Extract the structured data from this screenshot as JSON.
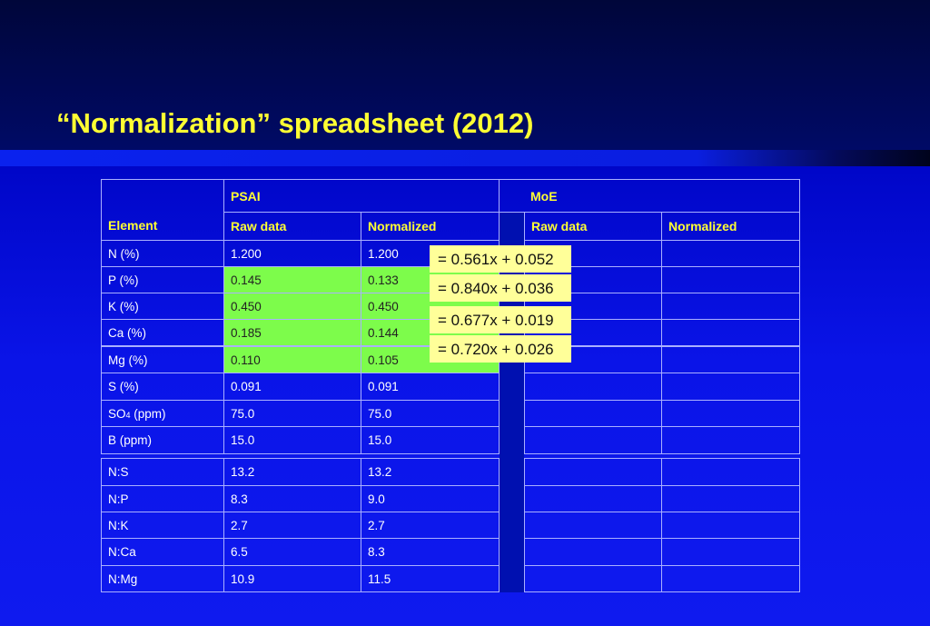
{
  "slide": {
    "title": "“Normalization” spreadsheet (2012)"
  },
  "table": {
    "group_headers": {
      "psai": "PSAI",
      "moe": "MoE"
    },
    "col_headers": {
      "element": "Element",
      "psai_raw": "Raw data",
      "psai_norm": "Normalized",
      "moe_raw": "Raw data",
      "moe_norm": "Normalized"
    },
    "rows": [
      {
        "element": "N (%)",
        "raw": "1.200",
        "norm": "1.200"
      },
      {
        "element": "P (%)",
        "raw": "0.145",
        "norm": "0.133"
      },
      {
        "element": "K (%)",
        "raw": "0.450",
        "norm": "0.450"
      },
      {
        "element": "Ca (%)",
        "raw": "0.185",
        "norm": "0.144"
      },
      {
        "element": "Mg (%)",
        "raw": "0.110",
        "norm": "0.105"
      },
      {
        "element": "S (%)",
        "raw": "0.091",
        "norm": "0.091"
      },
      {
        "element_main": "SO",
        "element_sub": "4",
        "element_rest": " (ppm)",
        "raw": "75.0",
        "norm": "75.0"
      },
      {
        "element": "B (ppm)",
        "raw": "15.0",
        "norm": "15.0"
      }
    ],
    "ratio_rows": [
      {
        "element": "N:S",
        "raw": "13.2",
        "norm": "13.2"
      },
      {
        "element": "N:P",
        "raw": "8.3",
        "norm": "9.0"
      },
      {
        "element": "N:K",
        "raw": "2.7",
        "norm": "2.7"
      },
      {
        "element": "N:Ca",
        "raw": "6.5",
        "norm": "8.3"
      },
      {
        "element": "N:Mg",
        "raw": "10.9",
        "norm": "11.5"
      }
    ]
  },
  "equations": [
    "= 0.561x + 0.052",
    "= 0.840x + 0.036",
    "= 0.677x + 0.019",
    "= 0.720x + 0.026"
  ],
  "colors": {
    "title": "#ffff33",
    "header_text": "#ffff33",
    "highlight": "#7dfc4b",
    "equation_box": "#ffff99",
    "grid": "#aab0ff"
  }
}
